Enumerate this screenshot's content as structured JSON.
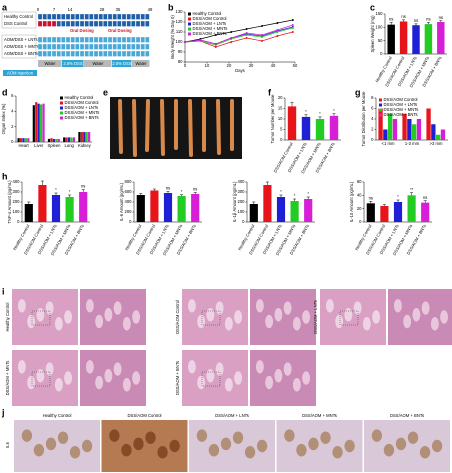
{
  "panel_labels": [
    "a",
    "b",
    "c",
    "d",
    "e",
    "f",
    "g",
    "h",
    "i",
    "j"
  ],
  "timeline": {
    "groups": [
      "Healthy Control",
      "DSS Control",
      "AOM/DSS + LNTs",
      "AOM/DSS + MNTs",
      "AOM/DSS + BNTs"
    ],
    "days": [
      0,
      7,
      14,
      28,
      35,
      49
    ],
    "dosing": [
      "Oral Dosing",
      "Oral Dosing"
    ],
    "phases": [
      "Water",
      "2.5% DSS",
      "Water",
      "2.5% DSS",
      "Water"
    ],
    "injection": "AOM injection"
  },
  "histology": {
    "labels": [
      "Healthy Control",
      "DSS/AOM Control",
      "DSS/AOM + LNTs",
      "DSS/AOM + MNTs",
      "DSS/AOM + BNTs"
    ]
  },
  "staining": {
    "marker": "IL6",
    "labels": [
      "Healthy Control",
      "DSS/AOM Control",
      "DSS/AOM + LNTs",
      "DSS/AOM + MNTs",
      "DSS/AOM + BNTs"
    ]
  },
  "chart_data": [
    {
      "type": "line",
      "ylabel": "Body Weight (% Day 0)",
      "xlabel": "Days",
      "x": [
        0,
        7,
        14,
        21,
        28,
        35,
        42,
        49
      ],
      "xlim": [
        0,
        50
      ],
      "xticks": [
        0,
        10,
        20,
        30,
        40,
        50
      ],
      "ylim": [
        80,
        130
      ],
      "yticks": [
        80,
        90,
        100,
        110,
        120,
        130
      ],
      "legend": "upper left",
      "series": [
        {
          "name": "Healthy Control",
          "color": "#000000",
          "values": [
            100,
            103,
            107,
            110,
            113,
            116,
            119,
            122
          ]
        },
        {
          "name": "DSS/AOM Control",
          "color": "#e8141b",
          "values": [
            100,
            101,
            95,
            100,
            104,
            101,
            106,
            110
          ]
        },
        {
          "name": "DSS/AOM + LNTs",
          "color": "#1f1fd6",
          "values": [
            100,
            102,
            98,
            104,
            108,
            106,
            111,
            115
          ]
        },
        {
          "name": "DSS/AOM + MNTs",
          "color": "#22cc22",
          "values": [
            100,
            101,
            97,
            103,
            107,
            105,
            110,
            114
          ]
        },
        {
          "name": "DSS/AOM + BNTs",
          "color": "#d61fd6",
          "values": [
            100,
            102,
            98,
            104,
            109,
            107,
            112,
            117
          ]
        }
      ]
    },
    {
      "type": "bar",
      "ylabel": "Spleen Weight (mg)",
      "categories": [
        "Healthy Control",
        "DSS/AOM Control",
        "DSS/AOM + LNTs",
        "DSS/AOM + MNTs",
        "DSS/AOM + BNTs"
      ],
      "values": [
        110,
        122,
        108,
        112,
        120
      ],
      "errors": [
        8,
        6,
        5,
        6,
        5
      ],
      "colors": [
        "#000000",
        "#e8141b",
        "#1f1fd6",
        "#22cc22",
        "#d61fd6"
      ],
      "significance": [
        "ns",
        "ns",
        "ns",
        "ns",
        "ns"
      ],
      "ylim": [
        0,
        150
      ],
      "yticks": [
        0,
        50,
        100,
        150
      ]
    },
    {
      "type": "bar",
      "ylabel": "Organ Index (%)",
      "categories": [
        "Heart",
        "Liver",
        "Spleen",
        "Lung",
        "Kidney"
      ],
      "legend": "upper right",
      "ylim": [
        0,
        6
      ],
      "yticks": [
        0,
        2,
        4,
        6
      ],
      "series": [
        {
          "name": "Healthy Control",
          "color": "#000000",
          "values": [
            0.5,
            4.8,
            0.4,
            0.6,
            1.3
          ]
        },
        {
          "name": "DSS/AOM Control",
          "color": "#e8141b",
          "values": [
            0.5,
            5.2,
            0.5,
            0.6,
            1.3
          ]
        },
        {
          "name": "DSS/AOM + LNTs",
          "color": "#1f1fd6",
          "values": [
            0.5,
            5.0,
            0.4,
            0.6,
            1.3
          ]
        },
        {
          "name": "DSS/AOM + MNTs",
          "color": "#22cc22",
          "values": [
            0.5,
            4.9,
            0.4,
            0.6,
            1.3
          ]
        },
        {
          "name": "DSS/AOM + BNTs",
          "color": "#d61fd6",
          "values": [
            0.5,
            5.0,
            0.4,
            0.6,
            1.3
          ]
        }
      ]
    },
    {
      "type": "bar",
      "ylabel": "Tumor Number per Mouse",
      "categories": [
        "DSS/AOM Control",
        "DSS/AOM + LNTs",
        "DSS/AOM + MNTs",
        "DSS/AOM + BNTs"
      ],
      "values": [
        16,
        11,
        10,
        11.5
      ],
      "errors": [
        2,
        1,
        1,
        1
      ],
      "colors": [
        "#e8141b",
        "#1f1fd6",
        "#22cc22",
        "#d61fd6"
      ],
      "significance": [
        null,
        "*",
        "*",
        "*"
      ],
      "ylim": [
        0,
        20
      ],
      "yticks": [
        0,
        5,
        10,
        15,
        20
      ]
    },
    {
      "type": "bar",
      "ylabel": "Tumor Distribution per Mouse",
      "categories": [
        "<1 mm",
        "1-3 mm",
        ">3 mm"
      ],
      "legend": "upper left",
      "ylim": [
        0,
        8
      ],
      "yticks": [
        0,
        2,
        4,
        6,
        8
      ],
      "series": [
        {
          "name": "DSS/AOM Control",
          "color": "#e8141b",
          "values": [
            6,
            5,
            6
          ]
        },
        {
          "name": "DSS/AOM + LNTs",
          "color": "#1f1fd6",
          "values": [
            2,
            4,
            3
          ]
        },
        {
          "name": "DSS/AOM + MNTs",
          "color": "#22cc22",
          "values": [
            5,
            3,
            1
          ]
        },
        {
          "name": "DSS/AOM + BNTs",
          "color": "#d61fd6",
          "values": [
            4,
            4,
            2
          ]
        }
      ]
    },
    {
      "type": "bar",
      "ylabel": "TNF-α Amount (pg/mL)",
      "categories": [
        "Healthy Control",
        "DSS/AOM Control",
        "DSS/AOM + LNTs",
        "DSS/AOM + MNTs",
        "DSS/AOM + BNTs"
      ],
      "values": [
        180,
        370,
        270,
        250,
        300
      ],
      "errors": [
        20,
        40,
        20,
        20,
        25
      ],
      "colors": [
        "#000000",
        "#e8141b",
        "#1f1fd6",
        "#22cc22",
        "#d61fd6"
      ],
      "significance": [
        null,
        null,
        "*",
        "*",
        "ns"
      ],
      "ylim": [
        0,
        400
      ],
      "yticks": [
        0,
        100,
        200,
        300,
        400
      ]
    },
    {
      "type": "bar",
      "ylabel": "IL-6 Amount (pg/mL)",
      "categories": [
        "Healthy Control",
        "DSS/AOM Control",
        "DSS/AOM + LNTs",
        "DSS/AOM + MNTs",
        "DSS/AOM + BNTs"
      ],
      "values": [
        540,
        630,
        580,
        520,
        560
      ],
      "errors": [
        30,
        30,
        30,
        25,
        30
      ],
      "colors": [
        "#000000",
        "#e8141b",
        "#1f1fd6",
        "#22cc22",
        "#d61fd6"
      ],
      "significance": [
        null,
        null,
        "ns",
        "*",
        "ns"
      ],
      "ylim": [
        0,
        800
      ],
      "yticks": [
        0,
        200,
        400,
        600,
        800
      ]
    },
    {
      "type": "bar",
      "ylabel": "IL-1β Amount (pg/mL)",
      "categories": [
        "Healthy Control",
        "DSS/AOM Control",
        "DSS/AOM + LNTs",
        "DSS/AOM + MNTs",
        "DSS/AOM + BNTs"
      ],
      "values": [
        180,
        370,
        250,
        210,
        230
      ],
      "errors": [
        20,
        30,
        20,
        20,
        20
      ],
      "colors": [
        "#000000",
        "#e8141b",
        "#1f1fd6",
        "#22cc22",
        "#d61fd6"
      ],
      "significance": [
        null,
        null,
        "*",
        "*",
        "*"
      ],
      "ylim": [
        0,
        400
      ],
      "yticks": [
        0,
        100,
        200,
        300,
        400
      ]
    },
    {
      "type": "bar",
      "ylabel": "IL-10 Amount (pg/mL)",
      "categories": [
        "Healthy Control",
        "DSS/AOM Control",
        "DSS/AOM + LNTs",
        "DSS/AOM + MNTs",
        "DSS/AOM + BNTs"
      ],
      "values": [
        28,
        24,
        30,
        40,
        29
      ],
      "errors": [
        3,
        2,
        3,
        4,
        3
      ],
      "colors": [
        "#000000",
        "#e8141b",
        "#1f1fd6",
        "#22cc22",
        "#d61fd6"
      ],
      "significance": [
        "ns",
        null,
        "*",
        "**",
        "ns"
      ],
      "ylim": [
        0,
        60
      ],
      "yticks": [
        0,
        20,
        40,
        60
      ]
    }
  ]
}
